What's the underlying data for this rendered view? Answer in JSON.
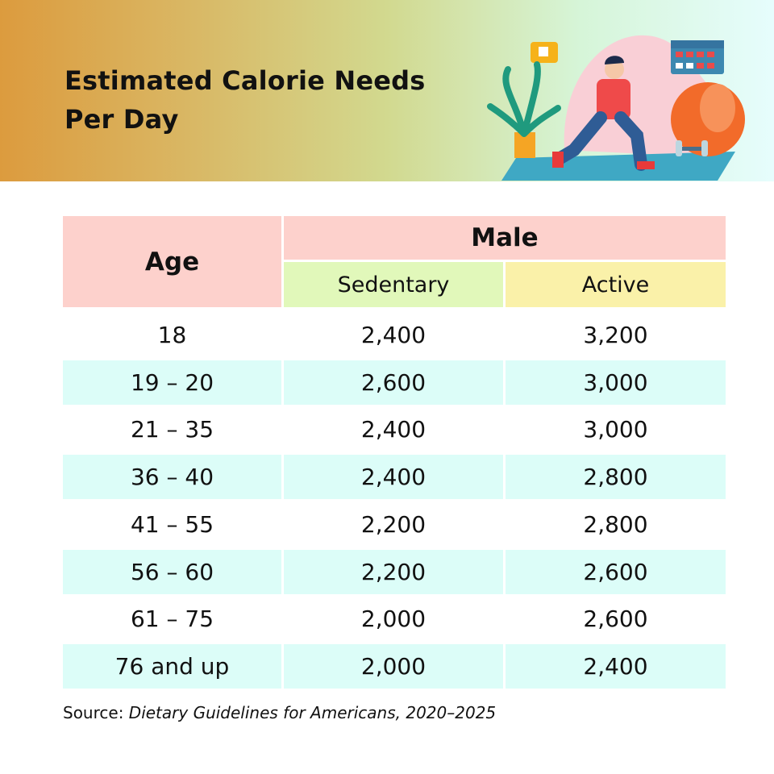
{
  "header": {
    "title_line1": "Estimated Calorie Needs",
    "title_line2": "Per Day"
  },
  "table": {
    "age_header": "Age",
    "group_header": "Male",
    "columns": [
      "Sedentary",
      "Active"
    ],
    "rows": [
      {
        "age": "18",
        "sedentary": "2,400",
        "active": "3,200"
      },
      {
        "age": "19 – 20",
        "sedentary": "2,600",
        "active": "3,000"
      },
      {
        "age": "21 – 35",
        "sedentary": "2,400",
        "active": "3,000"
      },
      {
        "age": "36 – 40",
        "sedentary": "2,400",
        "active": "2,800"
      },
      {
        "age": "41 – 55",
        "sedentary": "2,200",
        "active": "2,800"
      },
      {
        "age": "56 – 60",
        "sedentary": "2,200",
        "active": "2,600"
      },
      {
        "age": "61 – 75",
        "sedentary": "2,000",
        "active": "2,600"
      },
      {
        "age": "76 and up",
        "sedentary": "2,000",
        "active": "2,400"
      }
    ]
  },
  "source": {
    "label": "Source:",
    "title": "Dietary Guidelines for Americans, 2020–2025"
  },
  "colors": {
    "header_pink": "#fdd1cc",
    "sedentary_green": "#e1f8ba",
    "active_yellow": "#faf1a9",
    "stripe_cyan": "#dcfdf8"
  },
  "illustration": "man-exercising-lunge-with-plant-ball-dumbbell-calendar"
}
